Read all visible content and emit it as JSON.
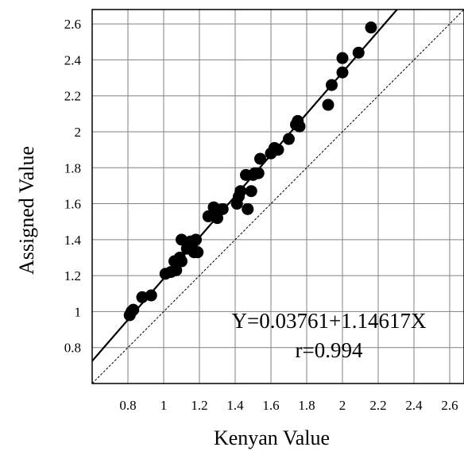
{
  "chart_data": {
    "type": "scatter",
    "xlabel": "Kenyan Value",
    "ylabel": "Assigned Value",
    "xlim": [
      0.6,
      2.68
    ],
    "ylim": [
      0.6,
      2.68
    ],
    "xticks": [
      "0.8",
      "1",
      "1.2",
      "1.4",
      "1.6",
      "1.8",
      "2",
      "2.2",
      "2.4",
      "2.6"
    ],
    "yticks": [
      "0.8",
      "1",
      "1.2",
      "1.4",
      "1.6",
      "1.8",
      "2",
      "2.2",
      "2.4",
      "2.6"
    ],
    "grid": true,
    "annotations": [
      "Y=0.03761+1.14617X",
      "r=0.994"
    ],
    "fit_line": {
      "intercept": 0.03761,
      "slope": 1.14617
    },
    "identity_line": true,
    "x": [
      0.81,
      0.82,
      0.83,
      0.88,
      0.93,
      1.01,
      1.04,
      1.06,
      1.07,
      1.09,
      1.1,
      1.1,
      1.13,
      1.15,
      1.16,
      1.17,
      1.18,
      1.19,
      1.25,
      1.28,
      1.3,
      1.33,
      1.41,
      1.42,
      1.43,
      1.46,
      1.47,
      1.49,
      1.5,
      1.51,
      1.53,
      1.54,
      1.6,
      1.62,
      1.64,
      1.7,
      1.74,
      1.75,
      1.76,
      1.92,
      1.94,
      2.0,
      2.0,
      2.09,
      2.16
    ],
    "y": [
      0.98,
      1.0,
      1.01,
      1.08,
      1.09,
      1.21,
      1.22,
      1.28,
      1.23,
      1.3,
      1.28,
      1.4,
      1.35,
      1.39,
      1.37,
      1.33,
      1.4,
      1.33,
      1.53,
      1.58,
      1.52,
      1.57,
      1.6,
      1.64,
      1.67,
      1.76,
      1.57,
      1.67,
      1.76,
      1.77,
      1.77,
      1.85,
      1.88,
      1.91,
      1.9,
      1.96,
      2.04,
      2.06,
      2.03,
      2.15,
      2.26,
      2.33,
      2.41,
      2.44,
      2.58
    ],
    "marker_color": "#000000",
    "line_color": "#000000",
    "grid_color": "#808080"
  }
}
